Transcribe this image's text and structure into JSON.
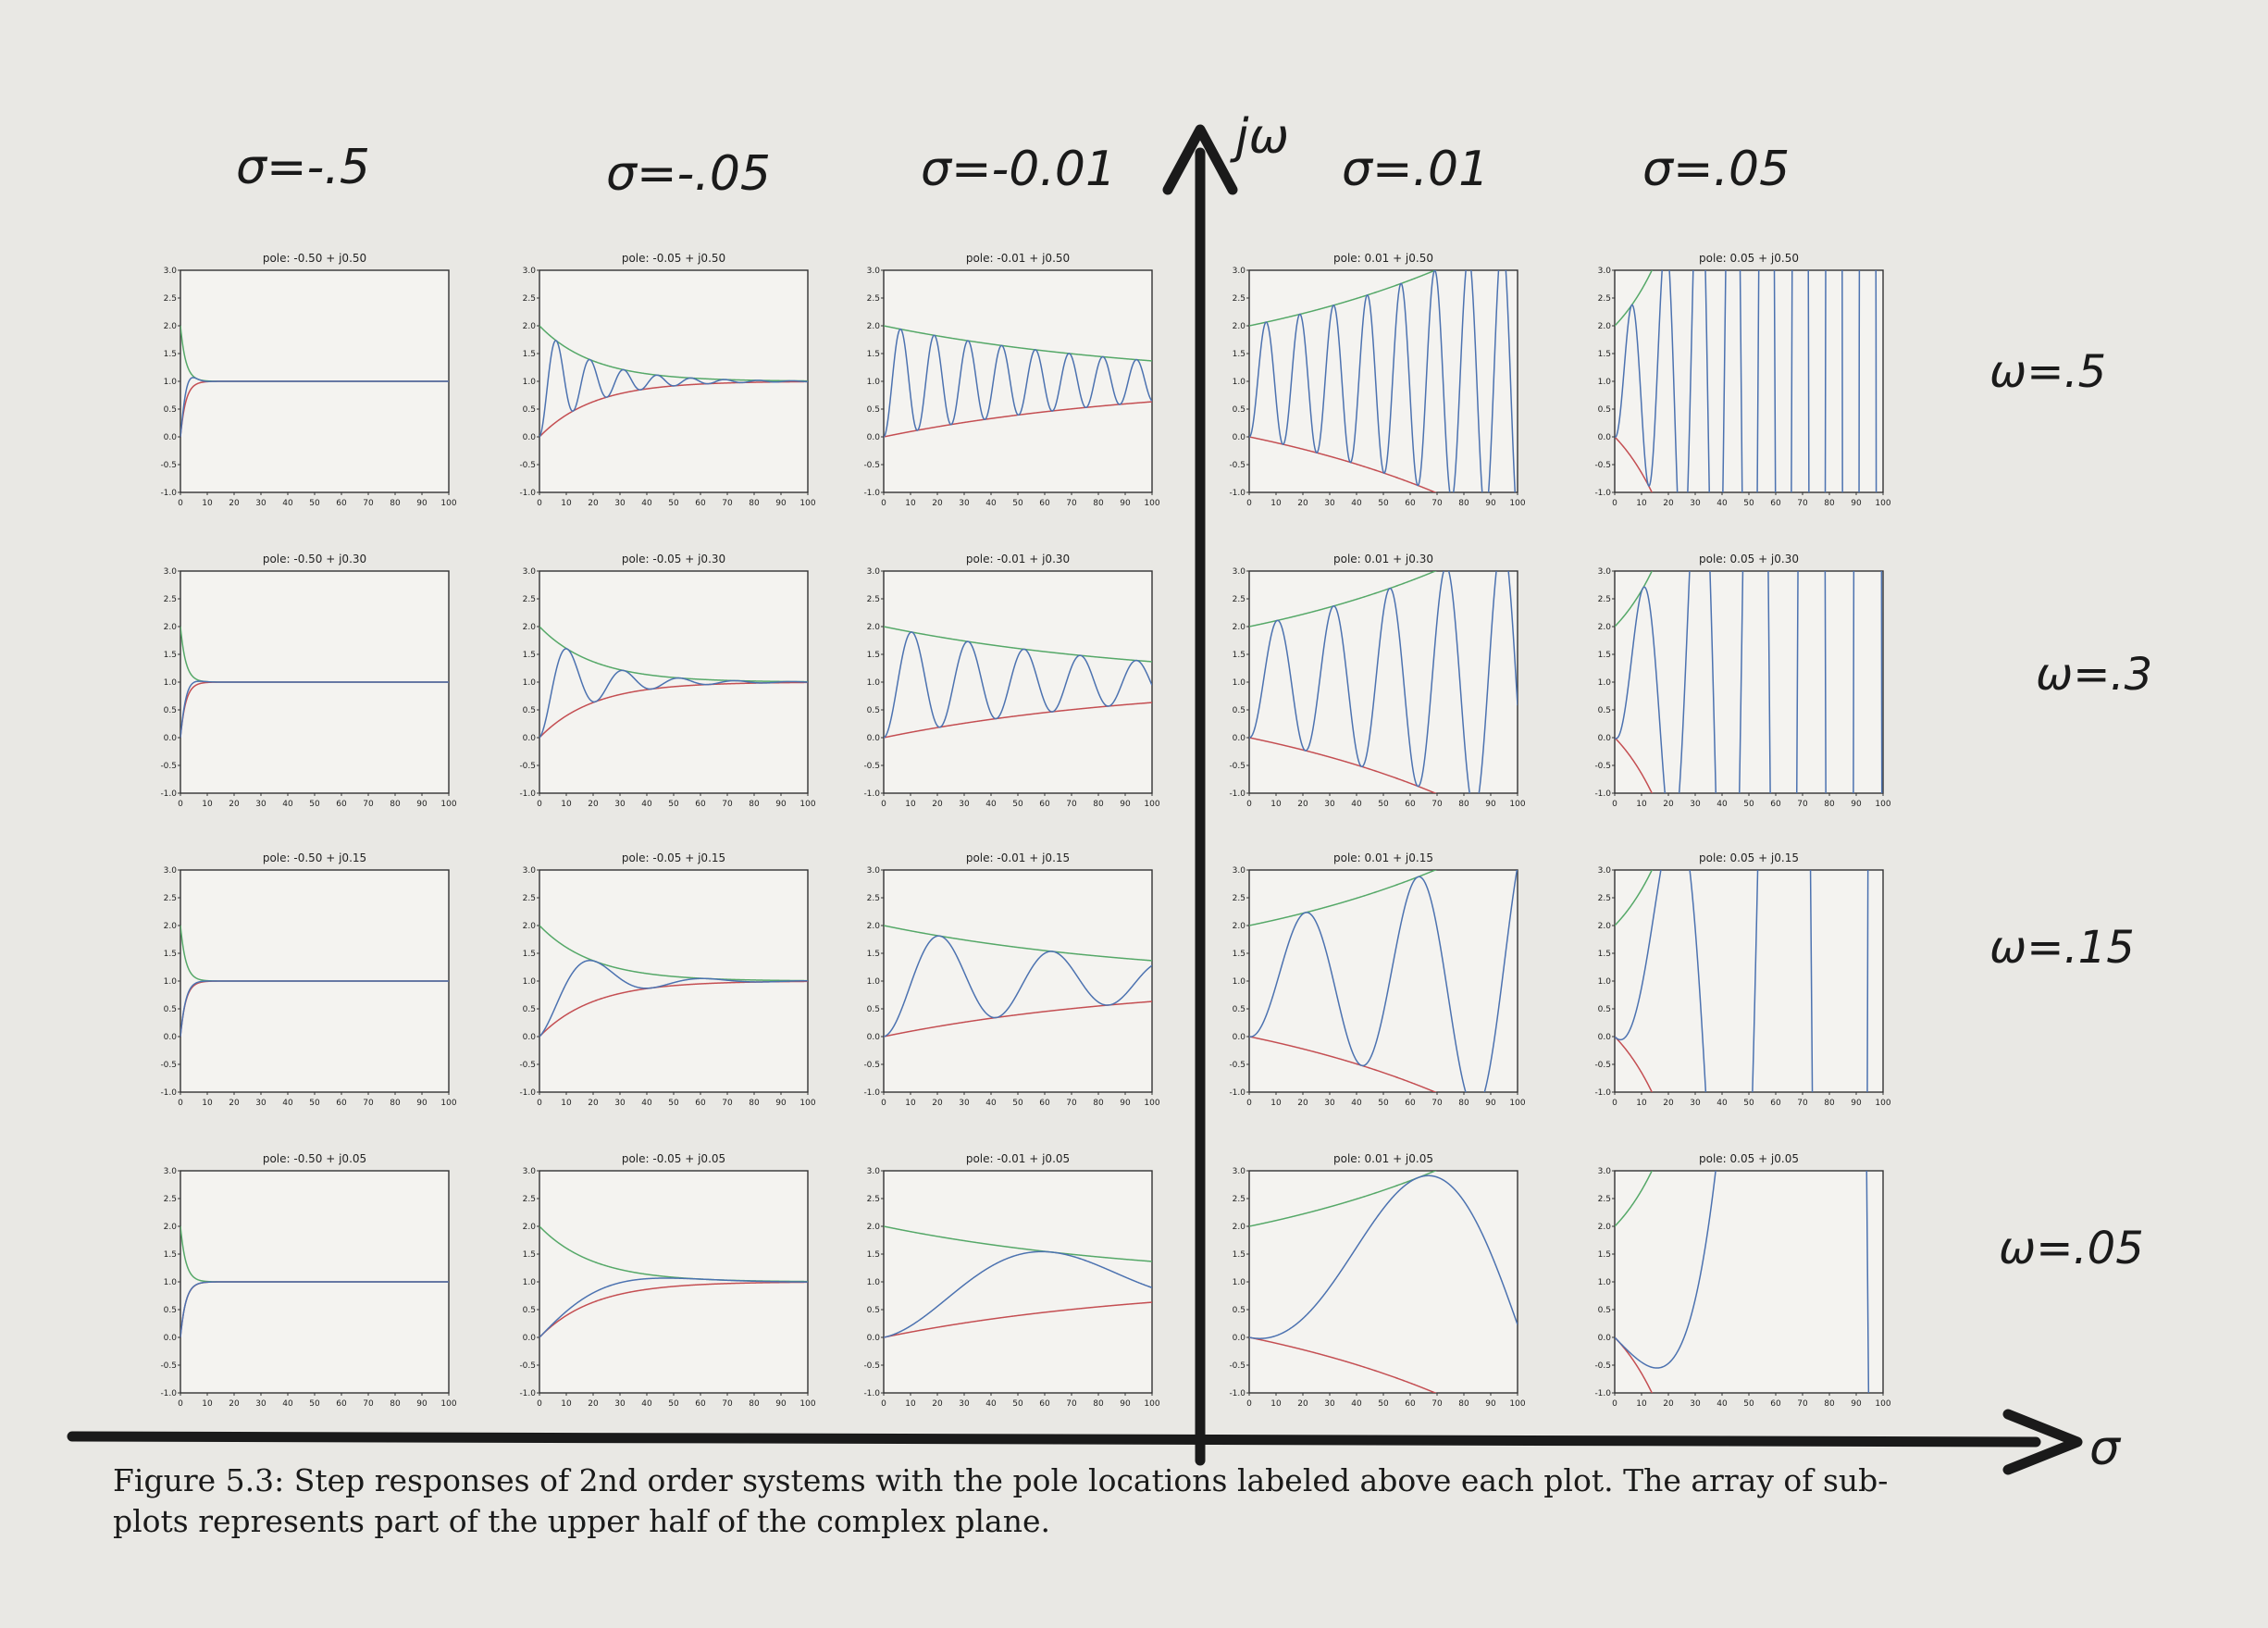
{
  "caption": "Figure 5.3: Step responses of 2nd order systems with the pole locations labeled above each plot. The array of sub-plots represents part of the upper half of the complex plane.",
  "handwriting": {
    "column_labels": [
      "σ=-.5",
      "σ=-.05",
      "σ=-0.01",
      "σ=.01",
      "σ=.05"
    ],
    "row_labels": [
      "ω=.5",
      "ω=.3",
      "ω=.15",
      "ω=.05"
    ],
    "axis_vertical": "jω",
    "axis_horizontal": "σ"
  },
  "chart_data": {
    "type": "line",
    "layout": "grid 4 rows x 5 columns",
    "x_ticks": [
      0,
      10,
      20,
      30,
      40,
      50,
      60,
      70,
      80,
      90,
      100
    ],
    "y_ticks": [
      3.0,
      2.5,
      2.0,
      1.5,
      1.0,
      0.5,
      0.0,
      -0.5,
      -1.0
    ],
    "xlim": [
      0,
      100
    ],
    "ylim": [
      -1.0,
      3.0
    ],
    "sigmas": [
      -0.5,
      -0.05,
      -0.01,
      0.01,
      0.05
    ],
    "omegas": [
      0.5,
      0.3,
      0.15,
      0.05
    ],
    "titles": [
      [
        "pole: -0.50 + j0.50",
        "pole: -0.05 + j0.50",
        "pole: -0.01 + j0.50",
        "pole: 0.01 + j0.50",
        "pole: 0.05 + j0.50"
      ],
      [
        "pole: -0.50 + j0.30",
        "pole: -0.05 + j0.30",
        "pole: -0.01 + j0.30",
        "pole: 0.01 + j0.30",
        "pole: 0.05 + j0.30"
      ],
      [
        "pole: -0.50 + j0.15",
        "pole: -0.05 + j0.15",
        "pole: -0.01 + j0.15",
        "pole: 0.01 + j0.15",
        "pole: 0.05 + j0.15"
      ],
      [
        "pole: -0.50 + j0.05",
        "pole: -0.05 + j0.05",
        "pole: -0.01 + j0.05",
        "pole: 0.01 + j0.05",
        "pole: 0.05 + j0.05"
      ]
    ],
    "series": [
      {
        "color": "#4c72b0",
        "curve": "1 - e^(σt)cos(ωt)"
      },
      {
        "color": "#55a868",
        "curve": "1 + e^(σt)"
      },
      {
        "color": "#c44e52",
        "curve": "1 - e^(σt)"
      }
    ]
  }
}
